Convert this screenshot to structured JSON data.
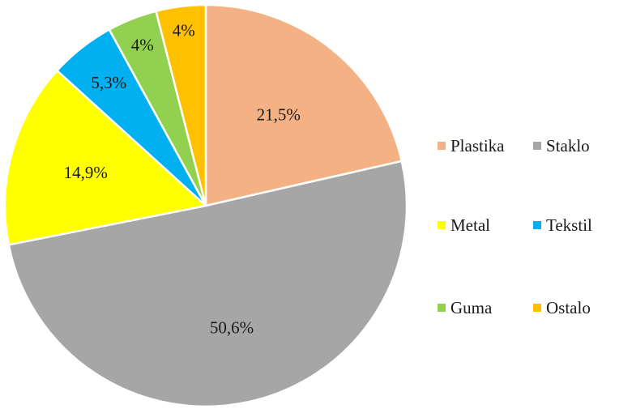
{
  "chart_data": {
    "type": "pie",
    "title": "",
    "categories": [
      "Plastika",
      "Staklo",
      "Metal",
      "Tekstil",
      "Guma",
      "Ostalo"
    ],
    "values": [
      21.5,
      50.6,
      14.9,
      5.3,
      4,
      4
    ],
    "labels": [
      "21,5%",
      "50,6%",
      "14,9%",
      "5,3%",
      "4%",
      "4%"
    ],
    "colors": [
      "#F4B183",
      "#A6A6A6",
      "#FFFF00",
      "#00B0F0",
      "#92D050",
      "#FFC000"
    ],
    "start_angle_deg": 0,
    "direction": "clockwise",
    "legend_position": "right",
    "legend_columns": 2
  }
}
